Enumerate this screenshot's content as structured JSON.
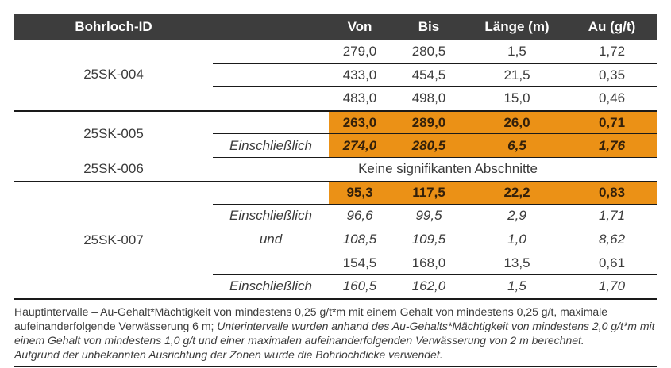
{
  "table": {
    "headers": [
      "Bohrloch-ID",
      "Von",
      "Bis",
      "Länge (m)",
      "Au (g/t)"
    ],
    "groups": [
      {
        "id": "25SK-004",
        "rows": [
          {
            "sub": "",
            "von": "279,0",
            "bis": "280,5",
            "laenge": "1,5",
            "au": "1,72"
          },
          {
            "sub": "",
            "von": "433,0",
            "bis": "454,5",
            "laenge": "21,5",
            "au": "0,35"
          },
          {
            "sub": "",
            "von": "483,0",
            "bis": "498,0",
            "laenge": "15,0",
            "au": "0,46"
          }
        ]
      },
      {
        "id": "25SK-005",
        "rows": [
          {
            "sub": "",
            "von": "263,0",
            "bis": "289,0",
            "laenge": "26,0",
            "au": "0,71"
          },
          {
            "sub": "Einschließlich",
            "von": "274,0",
            "bis": "280,5",
            "laenge": "6,5",
            "au": "1,76"
          }
        ]
      },
      {
        "id": "25SK-006",
        "note": "Keine signifikanten Abschnitte"
      },
      {
        "id": "25SK-007",
        "rows": [
          {
            "sub": "",
            "von": "95,3",
            "bis": "117,5",
            "laenge": "22,2",
            "au": "0,83"
          },
          {
            "sub": "Einschließlich",
            "von": "96,6",
            "bis": "99,5",
            "laenge": "2,9",
            "au": "1,71"
          },
          {
            "sub": "und",
            "von": "108,5",
            "bis": "109,5",
            "laenge": "1,0",
            "au": "8,62"
          },
          {
            "sub": "",
            "von": "154,5",
            "bis": "168,0",
            "laenge": "13,5",
            "au": "0,61"
          },
          {
            "sub": "Einschließlich",
            "von": "160,5",
            "bis": "162,0",
            "laenge": "1,5",
            "au": "1,70"
          }
        ]
      }
    ]
  },
  "footer": {
    "main_regular": "Hauptintervalle – Au-Gehalt*Mächtigkeit von mindestens 0,25 g/t*m mit einem Gehalt von mindestens 0,25 g/t, maximale aufeinanderfolgende Verwässerung 6 m; ",
    "sub_italic": "Unterintervalle wurden anhand des Au-Gehalts*Mächtigkeit von mindestens 2,0 g/t*m mit einem Gehalt von mindestens 1,0 g/t und einer maximalen aufeinanderfolgenden Verwässerung von 2 m berechnet.",
    "orientation_italic": "Aufgrund der unbekannten Ausrichtung der Zonen wurde die Bohrlochdicke verwendet."
  },
  "colors": {
    "highlight": "#EB9116",
    "header_bg": "#3D3D3D",
    "header_text": "#FFFFFF",
    "body_text": "#3B3B3B",
    "highlight_text": "#33200A",
    "line": "#1A1A1A"
  }
}
